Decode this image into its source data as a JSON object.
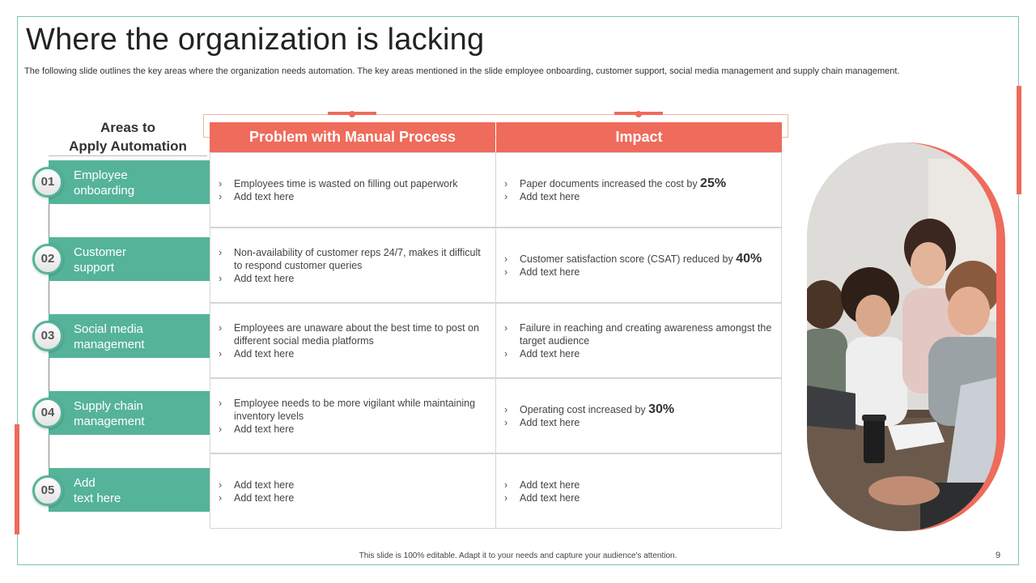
{
  "title": "Where the organization is lacking",
  "subtitle": "The following slide outlines the key areas where the organization needs automation. The key areas mentioned in the slide employee onboarding, customer support, social media management and supply chain management.",
  "areas_heading_line1": "Areas to",
  "areas_heading_line2": "Apply Automation",
  "areas": [
    {
      "num": "01",
      "line1": "Employee",
      "line2": "onboarding"
    },
    {
      "num": "02",
      "line1": "Customer",
      "line2": "support"
    },
    {
      "num": "03",
      "line1": "Social media",
      "line2": "management"
    },
    {
      "num": "04",
      "line1": "Supply chain",
      "line2": "management"
    },
    {
      "num": "05",
      "line1": "Add",
      "line2": "text here"
    }
  ],
  "table": {
    "header_problem": "Problem with Manual Process",
    "header_impact": "Impact",
    "rows": [
      {
        "problem": [
          "Employees time is wasted on filling out paperwork",
          "Add text here"
        ],
        "impact_main": "Paper documents increased the cost by ",
        "impact_highlight": "25%",
        "impact_extra": "Add text here"
      },
      {
        "problem": [
          "Non-availability  of customer reps 24/7, makes it difficult to respond customer queries",
          "Add text here"
        ],
        "impact_main": "Customer satisfaction score (CSAT)  reduced by ",
        "impact_highlight": "40%",
        "impact_extra": "Add text here"
      },
      {
        "problem": [
          "Employees are unaware  about the best time to post on different  social media platforms",
          "Add text here"
        ],
        "impact_main": "Failure in reaching and creating awareness amongst the target audience",
        "impact_highlight": "",
        "impact_extra": "Add text here"
      },
      {
        "problem": [
          "Employee needs to be more vigilant  while maintaining inventory levels",
          "Add text here"
        ],
        "impact_main": "Operating cost increased by ",
        "impact_highlight": "30%",
        "impact_extra": "Add text here"
      },
      {
        "problem": [
          "Add text here",
          "Add text here"
        ],
        "impact_main": "Add text here",
        "impact_highlight": "",
        "impact_extra": "Add text here"
      }
    ]
  },
  "footer": "This slide is 100% editable.  Adapt it to your needs and capture your audience's attention.",
  "page_number": "9",
  "colors": {
    "accent": "#ef6b5b",
    "teal": "#55b39a",
    "frame": "#7fc4b8"
  }
}
